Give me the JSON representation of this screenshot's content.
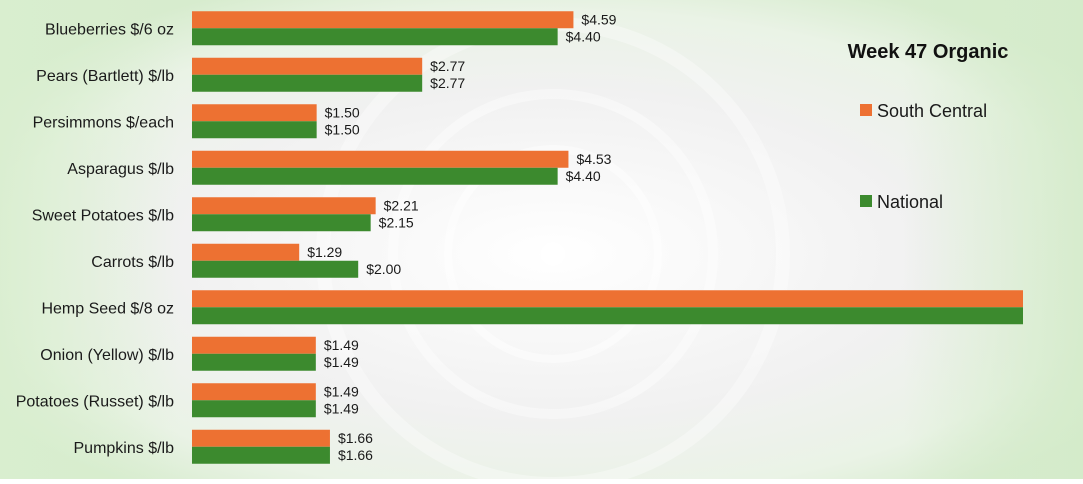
{
  "chart_data": {
    "type": "bar",
    "orientation": "horizontal",
    "title": "Week 47 Organic",
    "categories": [
      "Blueberries $/6 oz",
      "Pears (Bartlett) $/lb",
      "Persimmons $/each",
      "Asparagus $/lb",
      "Sweet Potatoes $/lb",
      "Carrots $/lb",
      "Hemp Seed $/8 oz",
      "Onion (Yellow) $/lb",
      "Potatoes (Russet) $/lb",
      "Pumpkins $/lb"
    ],
    "series": [
      {
        "name": "South Central",
        "color": "#ED7132",
        "values": [
          4.59,
          2.77,
          1.5,
          4.53,
          2.21,
          1.29,
          10.0,
          1.49,
          1.49,
          1.66
        ],
        "labels": [
          "$4.59",
          "$2.77",
          "$1.50",
          "$4.53",
          "$2.21",
          "$1.29",
          "",
          "$1.49",
          "$1.49",
          "$1.66"
        ]
      },
      {
        "name": "National",
        "color": "#3C8A2E",
        "values": [
          4.4,
          2.77,
          1.5,
          4.4,
          2.15,
          2.0,
          10.0,
          1.49,
          1.49,
          1.66
        ],
        "labels": [
          "$4.40",
          "$2.77",
          "$1.50",
          "$4.40",
          "$2.15",
          "$2.00",
          "",
          "$1.49",
          "$1.49",
          "$1.66"
        ]
      }
    ],
    "xlim": [
      0,
      10.0
    ],
    "xlabel": "",
    "ylabel": "",
    "grid": false,
    "legend_position": "right"
  }
}
